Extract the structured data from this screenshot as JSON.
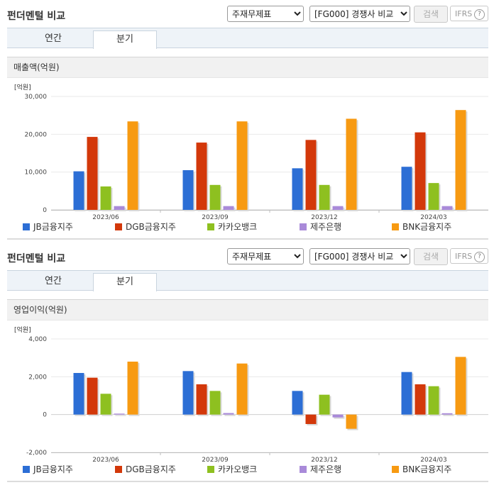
{
  "panels": [
    {
      "title": "펀더멘털 비교",
      "select_statement": "주재무제표",
      "select_compare": "[FG000] 경쟁사 비교",
      "search_label": "검색",
      "ifrs_label": "IFRS",
      "help_glyph": "?",
      "tabs": [
        {
          "label": "연간",
          "active": false
        },
        {
          "label": "분기",
          "active": true
        }
      ],
      "section_title": "매출액(억원)",
      "chart_data": {
        "type": "bar",
        "title": "매출액(억원)",
        "unit": "[억원]",
        "categories": [
          "2023/06",
          "2023/09",
          "2023/12",
          "2024/03"
        ],
        "ylim": [
          0,
          30000
        ],
        "yticks": [
          0,
          10000,
          20000,
          30000
        ],
        "ytick_labels": [
          "0",
          "10,000",
          "20,000",
          "30,000"
        ],
        "grid": true,
        "legend_position": "bottom",
        "series": [
          {
            "name": "JB금융지주",
            "color": "#2c6ed5",
            "values": [
              10200,
              10500,
              11000,
              11400
            ]
          },
          {
            "name": "DGB금융지주",
            "color": "#d3380a",
            "values": [
              19300,
              17800,
              18500,
              20500
            ]
          },
          {
            "name": "카카오뱅크",
            "color": "#8ec020",
            "values": [
              6200,
              6600,
              6600,
              7100
            ]
          },
          {
            "name": "제주은행",
            "color": "#a98ad9",
            "values": [
              1000,
              1000,
              1000,
              1000
            ]
          },
          {
            "name": "BNK금융지주",
            "color": "#f79a12",
            "values": [
              23400,
              23400,
              24100,
              26400
            ]
          }
        ]
      }
    },
    {
      "title": "펀더멘털 비교",
      "select_statement": "주재무제표",
      "select_compare": "[FG000] 경쟁사 비교",
      "search_label": "검색",
      "ifrs_label": "IFRS",
      "help_glyph": "?",
      "tabs": [
        {
          "label": "연간",
          "active": false
        },
        {
          "label": "분기",
          "active": true
        }
      ],
      "section_title": "영업이익(억원)",
      "chart_data": {
        "type": "bar",
        "title": "영업이익(억원)",
        "unit": "[억원]",
        "categories": [
          "2023/06",
          "2023/09",
          "2023/12",
          "2024/03"
        ],
        "ylim": [
          -2000,
          4000
        ],
        "yticks": [
          -2000,
          0,
          2000,
          4000
        ],
        "ytick_labels": [
          "-2,000",
          "0",
          "2,000",
          "4,000"
        ],
        "grid": true,
        "legend_position": "bottom",
        "series": [
          {
            "name": "JB금융지주",
            "color": "#2c6ed5",
            "values": [
              2200,
              2300,
              1250,
              2250
            ]
          },
          {
            "name": "DGB금융지주",
            "color": "#d3380a",
            "values": [
              1950,
              1600,
              -500,
              1600
            ]
          },
          {
            "name": "카카오뱅크",
            "color": "#8ec020",
            "values": [
              1100,
              1250,
              1050,
              1500
            ]
          },
          {
            "name": "제주은행",
            "color": "#a98ad9",
            "values": [
              50,
              80,
              -150,
              70
            ]
          },
          {
            "name": "BNK금융지주",
            "color": "#f79a12",
            "values": [
              2800,
              2700,
              -750,
              3050
            ]
          }
        ]
      }
    }
  ]
}
